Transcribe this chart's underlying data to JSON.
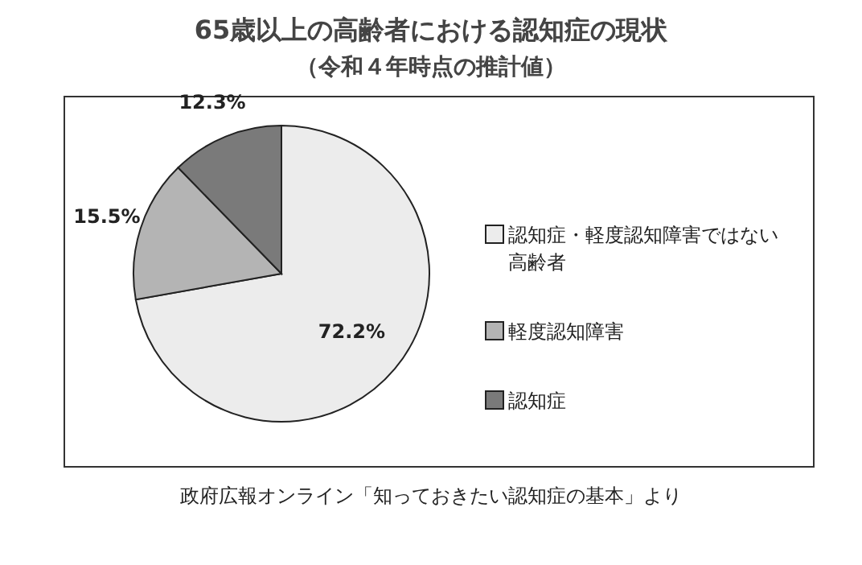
{
  "chart_data": {
    "type": "pie",
    "title": "65歳以上の高齢者における認知症の現状",
    "subtitle": "（令和４年時点の推計値）",
    "categories": [
      "認知症・軽度認知障害ではない高齢者",
      "軽度認知障害",
      "認知症"
    ],
    "values": [
      72.2,
      15.5,
      12.3
    ],
    "colors": [
      "#ececec",
      "#b4b4b4",
      "#7a7a7a"
    ],
    "value_labels": [
      "72.2%",
      "15.5%",
      "12.3%"
    ],
    "legend": "right",
    "annotations": [
      "政府広報オンライン「知っておきたい認知症の基本」より"
    ]
  }
}
